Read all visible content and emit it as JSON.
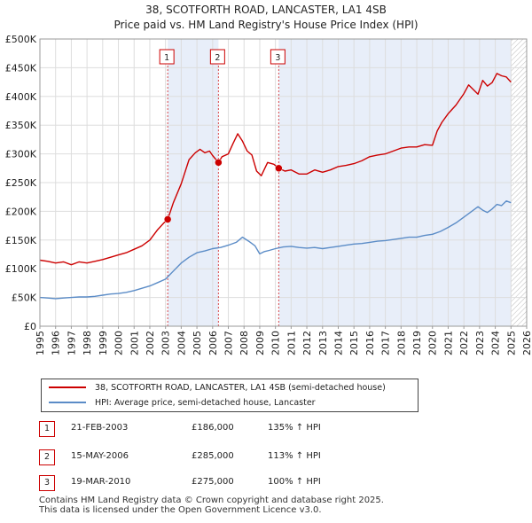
{
  "title_line1": "38, SCOTFORTH ROAD, LANCASTER, LA1 4SB",
  "title_line2": "Price paid vs. HM Land Registry's House Price Index (HPI)",
  "colors": {
    "property": "#cc0000",
    "hpi": "#5b8cc7",
    "shade": "#e8eef9",
    "grid": "#dddddd",
    "marker_line": "#cc0000"
  },
  "legend": {
    "property_label": "38, SCOTFORTH ROAD, LANCASTER, LA1 4SB (semi-detached house)",
    "hpi_label": "HPI: Average price, semi-detached house, Lancaster"
  },
  "sales": [
    {
      "num": "1",
      "date": "21-FEB-2003",
      "price": "£186,000",
      "hpi": "135% ↑ HPI"
    },
    {
      "num": "2",
      "date": "15-MAY-2006",
      "price": "£285,000",
      "hpi": "113% ↑ HPI"
    },
    {
      "num": "3",
      "date": "19-MAR-2010",
      "price": "£275,000",
      "hpi": "100% ↑ HPI"
    }
  ],
  "footer_line1": "Contains HM Land Registry data © Crown copyright and database right 2025.",
  "footer_line2": "This data is licensed under the Open Government Licence v3.0.",
  "chart_data": {
    "type": "line",
    "title": "38, SCOTFORTH ROAD, LANCASTER, LA1 4SB — Price paid vs. HM Land Registry's House Price Index (HPI)",
    "xlabel": "",
    "ylabel": "",
    "xlim": [
      1995,
      2026
    ],
    "ylim": [
      0,
      500000
    ],
    "x_ticks": [
      1995,
      1996,
      1997,
      1998,
      1999,
      2000,
      2001,
      2002,
      2003,
      2004,
      2005,
      2006,
      2007,
      2008,
      2009,
      2010,
      2011,
      2012,
      2013,
      2014,
      2015,
      2016,
      2017,
      2018,
      2019,
      2020,
      2021,
      2022,
      2023,
      2024,
      2025,
      2026
    ],
    "y_ticks": [
      0,
      50000,
      100000,
      150000,
      200000,
      250000,
      300000,
      350000,
      400000,
      450000,
      500000
    ],
    "y_tick_labels": [
      "£0",
      "£50K",
      "£100K",
      "£150K",
      "£200K",
      "£250K",
      "£300K",
      "£350K",
      "£400K",
      "£450K",
      "£500K"
    ],
    "shaded_ranges": [
      [
        2003.14,
        2006.37
      ],
      [
        2010.21,
        2025.0
      ]
    ],
    "hatched_after": 2025.0,
    "markers": [
      {
        "label": "1",
        "x": 2003.14,
        "y": 186000
      },
      {
        "label": "2",
        "x": 2006.37,
        "y": 285000
      },
      {
        "label": "3",
        "x": 2010.21,
        "y": 275000
      }
    ],
    "series": [
      {
        "name": "38, SCOTFORTH ROAD, LANCASTER, LA1 4SB (semi-detached house)",
        "x": [
          1995.0,
          1995.5,
          1996.0,
          1996.5,
          1997.0,
          1997.5,
          1998.0,
          1998.5,
          1999.0,
          1999.5,
          2000.0,
          2000.5,
          2001.0,
          2001.5,
          2002.0,
          2002.5,
          2002.9,
          2003.14,
          2003.5,
          2004.0,
          2004.5,
          2004.9,
          2005.2,
          2005.5,
          2005.8,
          2006.0,
          2006.37,
          2006.6,
          2007.0,
          2007.3,
          2007.6,
          2007.9,
          2008.2,
          2008.5,
          2008.8,
          2009.1,
          2009.5,
          2009.9,
          2010.21,
          2010.6,
          2011.0,
          2011.5,
          2012.0,
          2012.5,
          2013.0,
          2013.5,
          2014.0,
          2014.5,
          2015.0,
          2015.5,
          2016.0,
          2016.5,
          2017.0,
          2017.5,
          2018.0,
          2018.5,
          2019.0,
          2019.5,
          2020.0,
          2020.3,
          2020.6,
          2021.0,
          2021.5,
          2022.0,
          2022.3,
          2022.6,
          2022.9,
          2023.2,
          2023.5,
          2023.8,
          2024.1,
          2024.4,
          2024.7,
          2025.0
        ],
        "y": [
          115000,
          113000,
          110000,
          112000,
          107000,
          112000,
          110000,
          113000,
          116000,
          120000,
          124000,
          128000,
          134000,
          140000,
          150000,
          168000,
          180000,
          186000,
          215000,
          248000,
          290000,
          302000,
          308000,
          302000,
          305000,
          297000,
          285000,
          295000,
          300000,
          318000,
          335000,
          322000,
          305000,
          298000,
          270000,
          262000,
          285000,
          282000,
          275000,
          270000,
          272000,
          265000,
          265000,
          272000,
          268000,
          272000,
          278000,
          280000,
          283000,
          288000,
          295000,
          298000,
          300000,
          305000,
          310000,
          312000,
          312000,
          316000,
          315000,
          340000,
          355000,
          370000,
          385000,
          405000,
          420000,
          412000,
          404000,
          428000,
          418000,
          424000,
          440000,
          436000,
          434000,
          425000
        ]
      },
      {
        "name": "HPI: Average price, semi-detached house, Lancaster",
        "x": [
          1995.0,
          1995.5,
          1996.0,
          1996.5,
          1997.0,
          1997.5,
          1998.0,
          1998.5,
          1999.0,
          1999.5,
          2000.0,
          2000.5,
          2001.0,
          2001.5,
          2002.0,
          2002.5,
          2003.0,
          2003.5,
          2004.0,
          2004.5,
          2005.0,
          2005.5,
          2006.0,
          2006.5,
          2007.0,
          2007.5,
          2007.9,
          2008.3,
          2008.7,
          2009.0,
          2009.3,
          2009.6,
          2010.0,
          2010.5,
          2011.0,
          2011.5,
          2012.0,
          2012.5,
          2013.0,
          2013.5,
          2014.0,
          2014.5,
          2015.0,
          2015.5,
          2016.0,
          2016.5,
          2017.0,
          2017.5,
          2018.0,
          2018.5,
          2019.0,
          2019.5,
          2020.0,
          2020.5,
          2021.0,
          2021.5,
          2022.0,
          2022.5,
          2022.9,
          2023.2,
          2023.5,
          2023.8,
          2024.1,
          2024.4,
          2024.7,
          2025.0
        ],
        "y": [
          50000,
          49000,
          48000,
          49000,
          50000,
          51000,
          51000,
          52000,
          54000,
          56000,
          57000,
          59000,
          62000,
          66000,
          70000,
          76000,
          82000,
          96000,
          110000,
          120000,
          128000,
          131000,
          135000,
          137000,
          141000,
          146000,
          155000,
          148000,
          140000,
          126000,
          130000,
          132000,
          135000,
          138000,
          139000,
          137000,
          136000,
          137000,
          135000,
          137000,
          139000,
          141000,
          143000,
          144000,
          146000,
          148000,
          149000,
          151000,
          153000,
          155000,
          155000,
          158000,
          160000,
          165000,
          172000,
          180000,
          190000,
          200000,
          208000,
          202000,
          198000,
          204000,
          212000,
          210000,
          218000,
          215000
        ]
      }
    ]
  }
}
